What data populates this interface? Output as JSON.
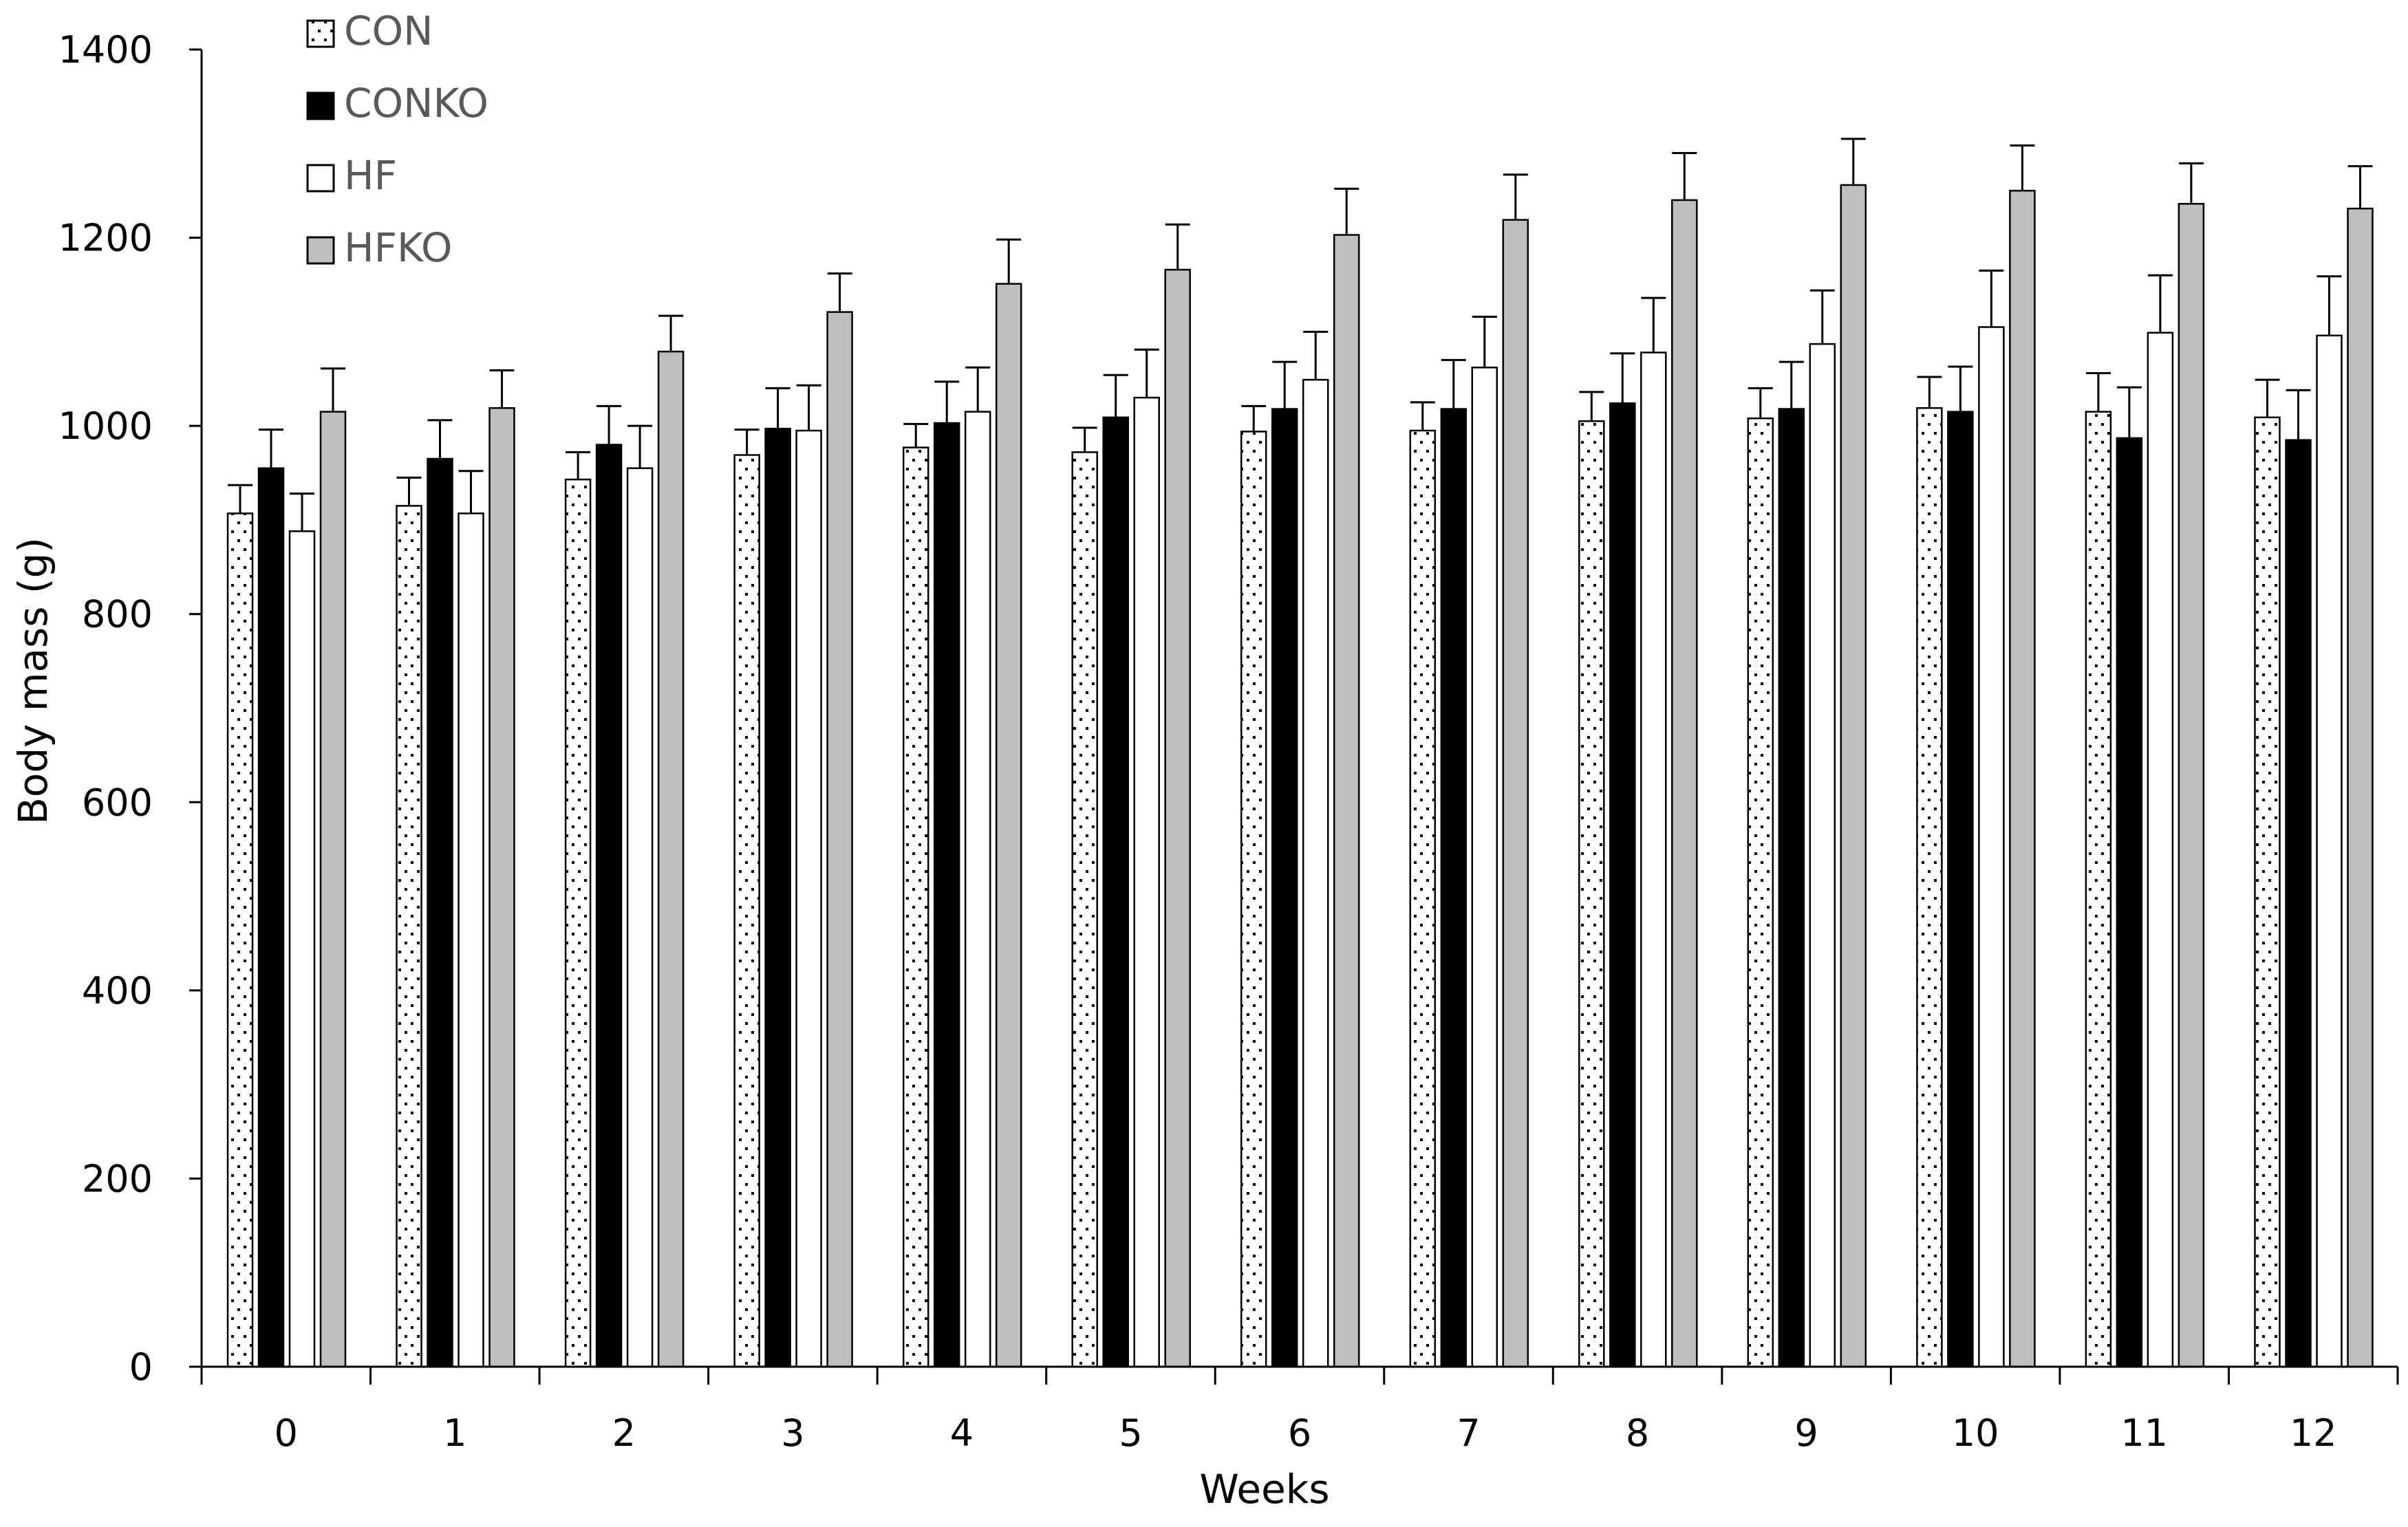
{
  "chart_data": {
    "type": "bar",
    "title": "",
    "xlabel": "Weeks",
    "ylabel": "Body mass (g)",
    "ylim": [
      0,
      1400
    ],
    "yticks": [
      0,
      200,
      400,
      600,
      800,
      1000,
      1200,
      1400
    ],
    "grid": false,
    "legend_position": "top-left",
    "error_bars": true,
    "categories": [
      "0",
      "1",
      "2",
      "3",
      "4",
      "5",
      "6",
      "7",
      "8",
      "9",
      "10",
      "11",
      "12"
    ],
    "series": [
      {
        "name": "CON",
        "pattern": "dotted",
        "fill": "#ffffff",
        "values": [
          907,
          915,
          943,
          969,
          977,
          972,
          994,
          995,
          1005,
          1008,
          1019,
          1015,
          1009
        ],
        "errors": [
          30,
          30,
          29,
          27,
          25,
          26,
          27,
          30,
          31,
          32,
          33,
          41,
          40
        ]
      },
      {
        "name": "CONKO",
        "pattern": "solid",
        "fill": "#000000",
        "values": [
          955,
          965,
          980,
          997,
          1003,
          1009,
          1018,
          1018,
          1024,
          1018,
          1015,
          987,
          985
        ],
        "errors": [
          41,
          41,
          41,
          43,
          44,
          45,
          50,
          52,
          53,
          50,
          48,
          54,
          53
        ]
      },
      {
        "name": "HF",
        "pattern": "solid",
        "fill": "#ffffff",
        "values": [
          888,
          907,
          955,
          995,
          1015,
          1030,
          1049,
          1062,
          1078,
          1087,
          1105,
          1099,
          1096
        ],
        "errors": [
          40,
          45,
          45,
          48,
          47,
          51,
          51,
          54,
          58,
          57,
          60,
          61,
          63
        ]
      },
      {
        "name": "HFKO",
        "pattern": "solid",
        "fill": "#bfbfbf",
        "values": [
          1015,
          1019,
          1079,
          1121,
          1151,
          1166,
          1203,
          1219,
          1240,
          1256,
          1250,
          1236,
          1231
        ],
        "errors": [
          46,
          40,
          38,
          41,
          47,
          48,
          49,
          48,
          50,
          49,
          48,
          43,
          45
        ]
      }
    ]
  }
}
